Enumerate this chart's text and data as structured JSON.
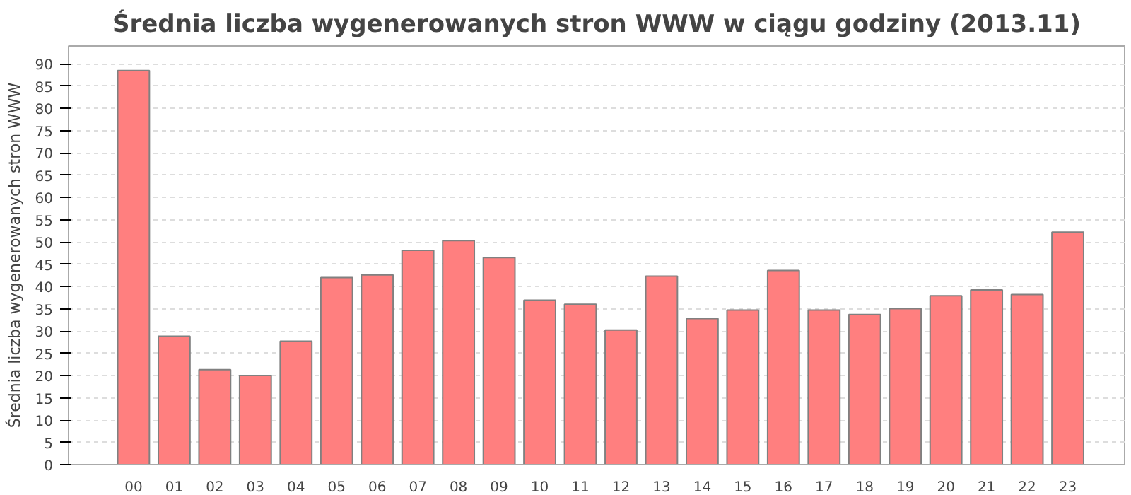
{
  "chart_data": {
    "type": "bar",
    "title": "Średnia liczba wygenerowanych stron WWW w ciągu godziny (2013.11)",
    "ylabel": "Średnia liczba wygenerowanych stron WWW",
    "categories": [
      "00",
      "01",
      "02",
      "03",
      "04",
      "05",
      "06",
      "07",
      "08",
      "09",
      "10",
      "11",
      "12",
      "13",
      "14",
      "15",
      "16",
      "17",
      "18",
      "19",
      "20",
      "21",
      "22",
      "23"
    ],
    "values": [
      88.5,
      28.8,
      21.3,
      20.0,
      27.7,
      42.0,
      42.6,
      48.1,
      50.3,
      46.5,
      36.9,
      36.0,
      30.2,
      42.3,
      32.8,
      34.7,
      43.6,
      34.7,
      33.7,
      35.0,
      37.9,
      39.2,
      38.2,
      52.2
    ],
    "color": "#ff7f7f",
    "ylim": [
      0,
      94
    ],
    "yticks": [
      0,
      5,
      10,
      15,
      20,
      25,
      30,
      35,
      40,
      45,
      50,
      55,
      60,
      65,
      70,
      75,
      80,
      85,
      90
    ],
    "grid": "y"
  }
}
